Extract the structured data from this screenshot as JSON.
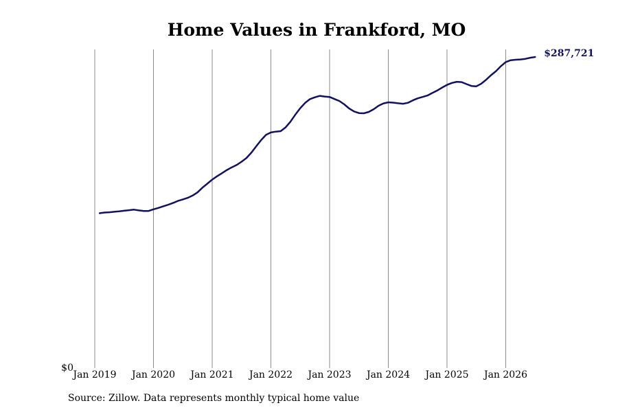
{
  "chart_data": {
    "type": "line",
    "title": "Home Values in Frankford, MO",
    "xlabel": "",
    "ylabel": "",
    "x_ticks": [
      "Jan 2019",
      "Jan 2020",
      "Jan 2021",
      "Jan 2022",
      "Jan 2023",
      "Jan 2024",
      "Jan 2025",
      "Jan 2026"
    ],
    "y_tick_labels": [
      "$0"
    ],
    "ylim": [
      0,
      287721
    ],
    "grid": "vertical",
    "line_color": "#12115e",
    "end_label": "$287,721",
    "series": [
      {
        "x": [
          "2019-02",
          "2019-03",
          "2019-04",
          "2019-05",
          "2019-06",
          "2019-07",
          "2019-08",
          "2019-09",
          "2019-10",
          "2019-11",
          "2019-12",
          "2020-01",
          "2020-02",
          "2020-03",
          "2020-04",
          "2020-05",
          "2020-06",
          "2020-07",
          "2020-08",
          "2020-09",
          "2020-10",
          "2020-11",
          "2020-12",
          "2021-01",
          "2021-02",
          "2021-03",
          "2021-04",
          "2021-05",
          "2021-06",
          "2021-07",
          "2021-08",
          "2021-09",
          "2021-10",
          "2021-11",
          "2021-12",
          "2022-01",
          "2022-02",
          "2022-03",
          "2022-04",
          "2022-05",
          "2022-06",
          "2022-07",
          "2022-08",
          "2022-09",
          "2022-10",
          "2022-11",
          "2022-12",
          "2023-01",
          "2023-02",
          "2023-03",
          "2023-04",
          "2023-05",
          "2023-06",
          "2023-07",
          "2023-08",
          "2023-09",
          "2023-10",
          "2023-11",
          "2023-12",
          "2024-01",
          "2024-02",
          "2024-03",
          "2024-04",
          "2024-05",
          "2024-06",
          "2024-07",
          "2024-08",
          "2024-09",
          "2024-10",
          "2024-11",
          "2024-12",
          "2025-01",
          "2025-02",
          "2025-03",
          "2025-04",
          "2025-05",
          "2025-06",
          "2025-07",
          "2025-08",
          "2025-09",
          "2025-10",
          "2025-11",
          "2025-12",
          "2026-01",
          "2026-02",
          "2026-03",
          "2026-04",
          "2026-05",
          "2026-06",
          "2026-07"
        ],
        "values": [
          142600,
          143200,
          143500,
          143900,
          144300,
          144900,
          145400,
          145900,
          145200,
          144700,
          144700,
          146200,
          147500,
          149000,
          150400,
          152100,
          154000,
          155400,
          156900,
          159000,
          161900,
          166300,
          170000,
          173800,
          176900,
          179800,
          182700,
          185200,
          187400,
          190400,
          193900,
          198800,
          204700,
          210500,
          215400,
          217600,
          218400,
          218800,
          222300,
          227600,
          234200,
          240200,
          245100,
          248600,
          250300,
          251600,
          251000,
          250600,
          248700,
          246800,
          243700,
          239900,
          237100,
          235600,
          235400,
          236700,
          239200,
          242400,
          244600,
          245600,
          245300,
          244700,
          244300,
          245200,
          247400,
          249300,
          250600,
          251900,
          254300,
          256600,
          259300,
          261800,
          263600,
          264700,
          264400,
          262500,
          260800,
          260500,
          262900,
          266600,
          270800,
          274600,
          279200,
          283000,
          284700,
          285200,
          285400,
          286000,
          287000,
          287721
        ]
      }
    ]
  },
  "source_text": "Source: Zillow. Data represents monthly typical home value"
}
